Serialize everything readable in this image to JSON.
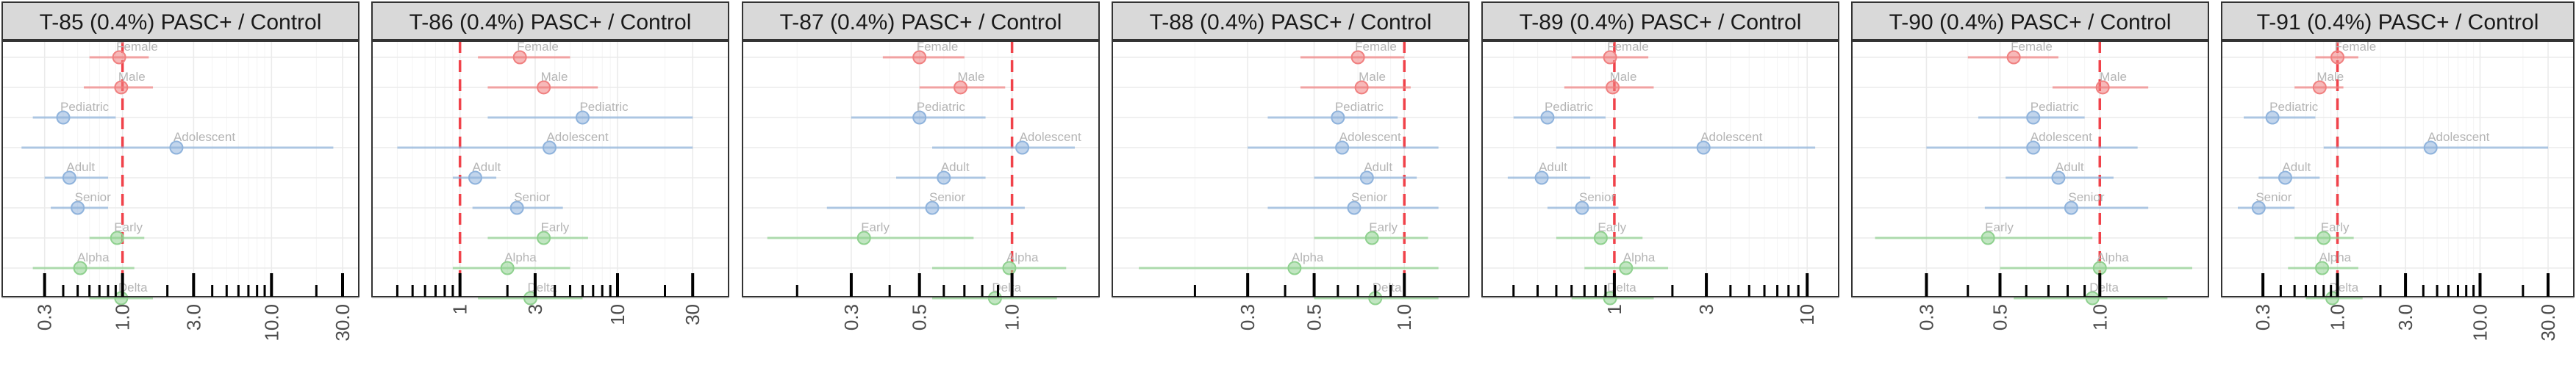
{
  "colors": {
    "sex": "#f08080",
    "age": "#8fb3dc",
    "variant": "#8fd18f",
    "ref_line": "#f0424a",
    "strip_bg": "#d9d9d9"
  },
  "chart_data": [
    {
      "type": "forest",
      "title": "T-85 (0.4%) PASC+ / Control",
      "x_scale": "log",
      "xlim": [
        0.2,
        30
      ],
      "ref_x": 1.0,
      "tick_labels": [
        "0.3",
        "1.0",
        "3.0",
        "10.0",
        "30.0"
      ],
      "ticks_major": [
        0.3,
        1,
        3,
        10,
        30
      ],
      "ticks_minor": [
        0.4,
        0.5,
        0.6,
        0.7,
        0.8,
        0.9,
        2,
        4,
        5,
        6,
        7,
        8,
        9,
        20
      ],
      "rows": [
        {
          "label": "Female",
          "group": "sex",
          "est": 0.95,
          "lo": 0.6,
          "hi": 1.5
        },
        {
          "label": "Male",
          "group": "sex",
          "est": 0.98,
          "lo": 0.55,
          "hi": 1.6
        },
        {
          "label": "Pediatric",
          "group": "age",
          "est": 0.4,
          "lo": 0.25,
          "hi": 0.9
        },
        {
          "label": "Adolescent",
          "group": "age",
          "est": 2.3,
          "lo": 0.21,
          "hi": 26
        },
        {
          "label": "Adult",
          "group": "age",
          "est": 0.44,
          "lo": 0.3,
          "hi": 0.8
        },
        {
          "label": "Senior",
          "group": "age",
          "est": 0.5,
          "lo": 0.33,
          "hi": 0.8
        },
        {
          "label": "Early",
          "group": "variant",
          "est": 0.92,
          "lo": 0.6,
          "hi": 1.4
        },
        {
          "label": "Alpha",
          "group": "variant",
          "est": 0.52,
          "lo": 0.25,
          "hi": 1.2
        },
        {
          "label": "Delta",
          "group": "variant",
          "est": 0.98,
          "lo": 0.6,
          "hi": 1.6
        }
      ]
    },
    {
      "type": "forest",
      "title": "T-86 (0.4%) PASC+ / Control",
      "x_scale": "log",
      "xlim": [
        0.35,
        40
      ],
      "ref_x": 1.0,
      "tick_labels": [
        "1",
        "3",
        "10",
        "30"
      ],
      "ticks_major": [
        1,
        3,
        10,
        30
      ],
      "ticks_minor": [
        0.4,
        0.5,
        0.6,
        0.7,
        0.8,
        0.9,
        2,
        4,
        5,
        6,
        7,
        8,
        9,
        20
      ],
      "rows": [
        {
          "label": "Female",
          "group": "sex",
          "est": 2.4,
          "lo": 1.3,
          "hi": 5
        },
        {
          "label": "Male",
          "group": "sex",
          "est": 3.4,
          "lo": 1.5,
          "hi": 7.5
        },
        {
          "label": "Pediatric",
          "group": "age",
          "est": 6.0,
          "lo": 1.5,
          "hi": 30
        },
        {
          "label": "Adolescent",
          "group": "age",
          "est": 3.7,
          "lo": 0.4,
          "hi": 30
        },
        {
          "label": "Adult",
          "group": "age",
          "est": 1.25,
          "lo": 0.9,
          "hi": 1.7
        },
        {
          "label": "Senior",
          "group": "age",
          "est": 2.3,
          "lo": 1.2,
          "hi": 4.5
        },
        {
          "label": "Early",
          "group": "variant",
          "est": 3.4,
          "lo": 1.5,
          "hi": 6.5
        },
        {
          "label": "Alpha",
          "group": "variant",
          "est": 2.0,
          "lo": 0.9,
          "hi": 5
        },
        {
          "label": "Delta",
          "group": "variant",
          "est": 2.8,
          "lo": 1.3,
          "hi": 6
        }
      ]
    },
    {
      "type": "forest",
      "title": "T-87 (0.4%) PASC+ / Control",
      "x_scale": "log",
      "xlim": [
        0.15,
        1.7
      ],
      "ref_x": 1.0,
      "tick_labels": [
        "0.3",
        "0.5",
        "1.0"
      ],
      "ticks_major": [
        0.3,
        0.5,
        1
      ],
      "ticks_minor": [
        0.2,
        0.4,
        0.6,
        0.7,
        0.8,
        0.9
      ],
      "rows": [
        {
          "label": "Female",
          "group": "sex",
          "est": 0.5,
          "lo": 0.38,
          "hi": 0.7
        },
        {
          "label": "Male",
          "group": "sex",
          "est": 0.68,
          "lo": 0.5,
          "hi": 0.95
        },
        {
          "label": "Pediatric",
          "group": "age",
          "est": 0.5,
          "lo": 0.3,
          "hi": 0.82
        },
        {
          "label": "Adolescent",
          "group": "age",
          "est": 1.08,
          "lo": 0.55,
          "hi": 1.6
        },
        {
          "label": "Adult",
          "group": "age",
          "est": 0.6,
          "lo": 0.42,
          "hi": 0.82
        },
        {
          "label": "Senior",
          "group": "age",
          "est": 0.55,
          "lo": 0.25,
          "hi": 1.1
        },
        {
          "label": "Early",
          "group": "variant",
          "est": 0.33,
          "lo": 0.16,
          "hi": 0.75
        },
        {
          "label": "Alpha",
          "group": "variant",
          "est": 0.98,
          "lo": 0.55,
          "hi": 1.5
        },
        {
          "label": "Delta",
          "group": "variant",
          "est": 0.88,
          "lo": 0.55,
          "hi": 1.4
        }
      ]
    },
    {
      "type": "forest",
      "title": "T-88 (0.4%) PASC+ / Control",
      "x_scale": "log",
      "xlim": [
        0.12,
        1.45
      ],
      "ref_x": 1.0,
      "tick_labels": [
        "0.3",
        "0.5",
        "1.0"
      ],
      "ticks_major": [
        0.3,
        0.5,
        1
      ],
      "ticks_minor": [
        0.2,
        0.4,
        0.6,
        0.7,
        0.8,
        0.9
      ],
      "rows": [
        {
          "label": "Female",
          "group": "sex",
          "est": 0.7,
          "lo": 0.45,
          "hi": 1.0
        },
        {
          "label": "Male",
          "group": "sex",
          "est": 0.72,
          "lo": 0.45,
          "hi": 1.05
        },
        {
          "label": "Pediatric",
          "group": "age",
          "est": 0.6,
          "lo": 0.35,
          "hi": 0.95
        },
        {
          "label": "Adolescent",
          "group": "age",
          "est": 0.62,
          "lo": 0.3,
          "hi": 1.3
        },
        {
          "label": "Adult",
          "group": "age",
          "est": 0.75,
          "lo": 0.5,
          "hi": 1.1
        },
        {
          "label": "Senior",
          "group": "age",
          "est": 0.68,
          "lo": 0.35,
          "hi": 1.3
        },
        {
          "label": "Early",
          "group": "variant",
          "est": 0.78,
          "lo": 0.5,
          "hi": 1.2
        },
        {
          "label": "Alpha",
          "group": "variant",
          "est": 0.43,
          "lo": 0.13,
          "hi": 1.3
        },
        {
          "label": "Delta",
          "group": "variant",
          "est": 0.8,
          "lo": 0.5,
          "hi": 1.3
        }
      ]
    },
    {
      "type": "forest",
      "title": "T-89 (0.4%) PASC+ / Control",
      "x_scale": "log",
      "xlim": [
        0.25,
        12
      ],
      "ref_x": 1.0,
      "tick_labels": [
        "1",
        "3",
        "10"
      ],
      "ticks_major": [
        1,
        3,
        10
      ],
      "ticks_minor": [
        0.3,
        0.4,
        0.5,
        0.6,
        0.7,
        0.8,
        0.9,
        2,
        4,
        5,
        6,
        7,
        8,
        9
      ],
      "rows": [
        {
          "label": "Female",
          "group": "sex",
          "est": 0.95,
          "lo": 0.6,
          "hi": 1.5
        },
        {
          "label": "Male",
          "group": "sex",
          "est": 0.98,
          "lo": 0.55,
          "hi": 1.6
        },
        {
          "label": "Pediatric",
          "group": "age",
          "est": 0.45,
          "lo": 0.3,
          "hi": 0.9
        },
        {
          "label": "Adolescent",
          "group": "age",
          "est": 2.9,
          "lo": 0.5,
          "hi": 11
        },
        {
          "label": "Adult",
          "group": "age",
          "est": 0.42,
          "lo": 0.28,
          "hi": 0.75
        },
        {
          "label": "Senior",
          "group": "age",
          "est": 0.68,
          "lo": 0.45,
          "hi": 1.05
        },
        {
          "label": "Early",
          "group": "variant",
          "est": 0.85,
          "lo": 0.5,
          "hi": 1.4
        },
        {
          "label": "Alpha",
          "group": "variant",
          "est": 1.15,
          "lo": 0.7,
          "hi": 1.9
        },
        {
          "label": "Delta",
          "group": "variant",
          "est": 0.95,
          "lo": 0.6,
          "hi": 1.6
        }
      ]
    },
    {
      "type": "forest",
      "title": "T-90 (0.4%) PASC+ / Control",
      "x_scale": "log",
      "xlim": [
        0.2,
        1.9
      ],
      "ref_x": 1.0,
      "tick_labels": [
        "0.3",
        "0.5",
        "1.0"
      ],
      "ticks_major": [
        0.3,
        0.5,
        1
      ],
      "ticks_minor": [
        0.4,
        0.6,
        0.7,
        0.8,
        0.9
      ],
      "rows": [
        {
          "label": "Female",
          "group": "sex",
          "est": 0.55,
          "lo": 0.4,
          "hi": 0.75
        },
        {
          "label": "Male",
          "group": "sex",
          "est": 1.02,
          "lo": 0.72,
          "hi": 1.4
        },
        {
          "label": "Pediatric",
          "group": "age",
          "est": 0.63,
          "lo": 0.43,
          "hi": 0.9
        },
        {
          "label": "Adolescent",
          "group": "age",
          "est": 0.63,
          "lo": 0.3,
          "hi": 1.3
        },
        {
          "label": "Adult",
          "group": "age",
          "est": 0.75,
          "lo": 0.52,
          "hi": 1.1
        },
        {
          "label": "Senior",
          "group": "age",
          "est": 0.82,
          "lo": 0.45,
          "hi": 1.4
        },
        {
          "label": "Early",
          "group": "variant",
          "est": 0.46,
          "lo": 0.21,
          "hi": 0.95
        },
        {
          "label": "Alpha",
          "group": "variant",
          "est": 1.0,
          "lo": 0.5,
          "hi": 1.9
        },
        {
          "label": "Delta",
          "group": "variant",
          "est": 0.95,
          "lo": 0.55,
          "hi": 1.6
        }
      ]
    },
    {
      "type": "forest",
      "title": "T-91 (0.4%) PASC+ / Control",
      "x_scale": "log",
      "xlim": [
        0.2,
        35
      ],
      "ref_x": 1.0,
      "tick_labels": [
        "0.3",
        "1.0",
        "3.0",
        "10.0",
        "30.0"
      ],
      "ticks_major": [
        0.3,
        1,
        3,
        10,
        30
      ],
      "ticks_minor": [
        0.4,
        0.5,
        0.6,
        0.7,
        0.8,
        0.9,
        2,
        4,
        5,
        6,
        7,
        8,
        9,
        20
      ],
      "rows": [
        {
          "label": "Female",
          "group": "sex",
          "est": 1.0,
          "lo": 0.7,
          "hi": 1.4
        },
        {
          "label": "Male",
          "group": "sex",
          "est": 0.75,
          "lo": 0.5,
          "hi": 1.1
        },
        {
          "label": "Pediatric",
          "group": "age",
          "est": 0.35,
          "lo": 0.22,
          "hi": 0.7
        },
        {
          "label": "Adolescent",
          "group": "age",
          "est": 4.5,
          "lo": 0.8,
          "hi": 30
        },
        {
          "label": "Adult",
          "group": "age",
          "est": 0.43,
          "lo": 0.28,
          "hi": 0.75
        },
        {
          "label": "Senior",
          "group": "age",
          "est": 0.28,
          "lo": 0.18,
          "hi": 0.5
        },
        {
          "label": "Early",
          "group": "variant",
          "est": 0.8,
          "lo": 0.5,
          "hi": 1.3
        },
        {
          "label": "Alpha",
          "group": "variant",
          "est": 0.78,
          "lo": 0.45,
          "hi": 1.4
        },
        {
          "label": "Delta",
          "group": "variant",
          "est": 0.92,
          "lo": 0.6,
          "hi": 1.5
        }
      ]
    }
  ]
}
